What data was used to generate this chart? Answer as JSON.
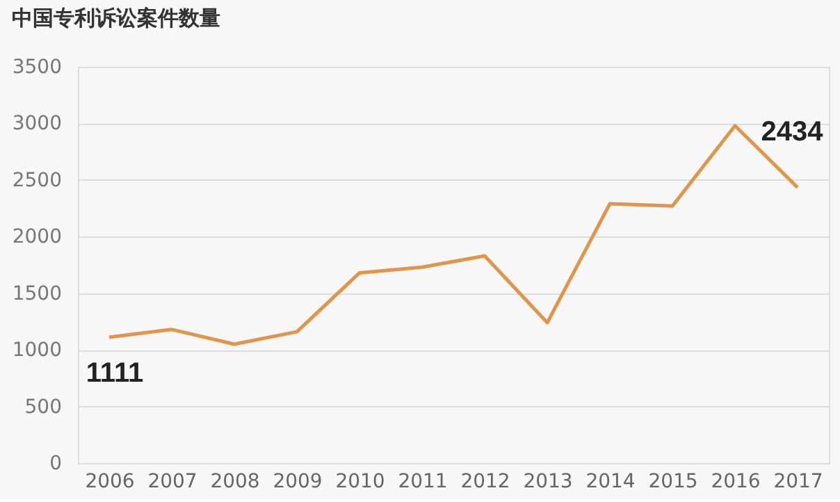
{
  "chart_data": {
    "type": "line",
    "title": "中国专利诉讼案件数量",
    "categories": [
      "2006",
      "2007",
      "2008",
      "2009",
      "2010",
      "2011",
      "2012",
      "2013",
      "2014",
      "2015",
      "2016",
      "2017"
    ],
    "series": [
      {
        "color": "#e0954a",
        "values": [
          1111,
          1180,
          1050,
          1160,
          1680,
          1730,
          1830,
          1240,
          2290,
          2270,
          2980,
          2434
        ]
      }
    ],
    "annotations": [
      {
        "text": "1111",
        "x": "2006",
        "y": 1111
      },
      {
        "text": "2434",
        "x": "2017",
        "y": 2434
      }
    ],
    "ylim": [
      0,
      3500
    ],
    "yticks": [
      0,
      500,
      1000,
      1500,
      2000,
      2500,
      3000,
      3500
    ],
    "grid": "y",
    "marker": "none",
    "line_style": "solid"
  }
}
